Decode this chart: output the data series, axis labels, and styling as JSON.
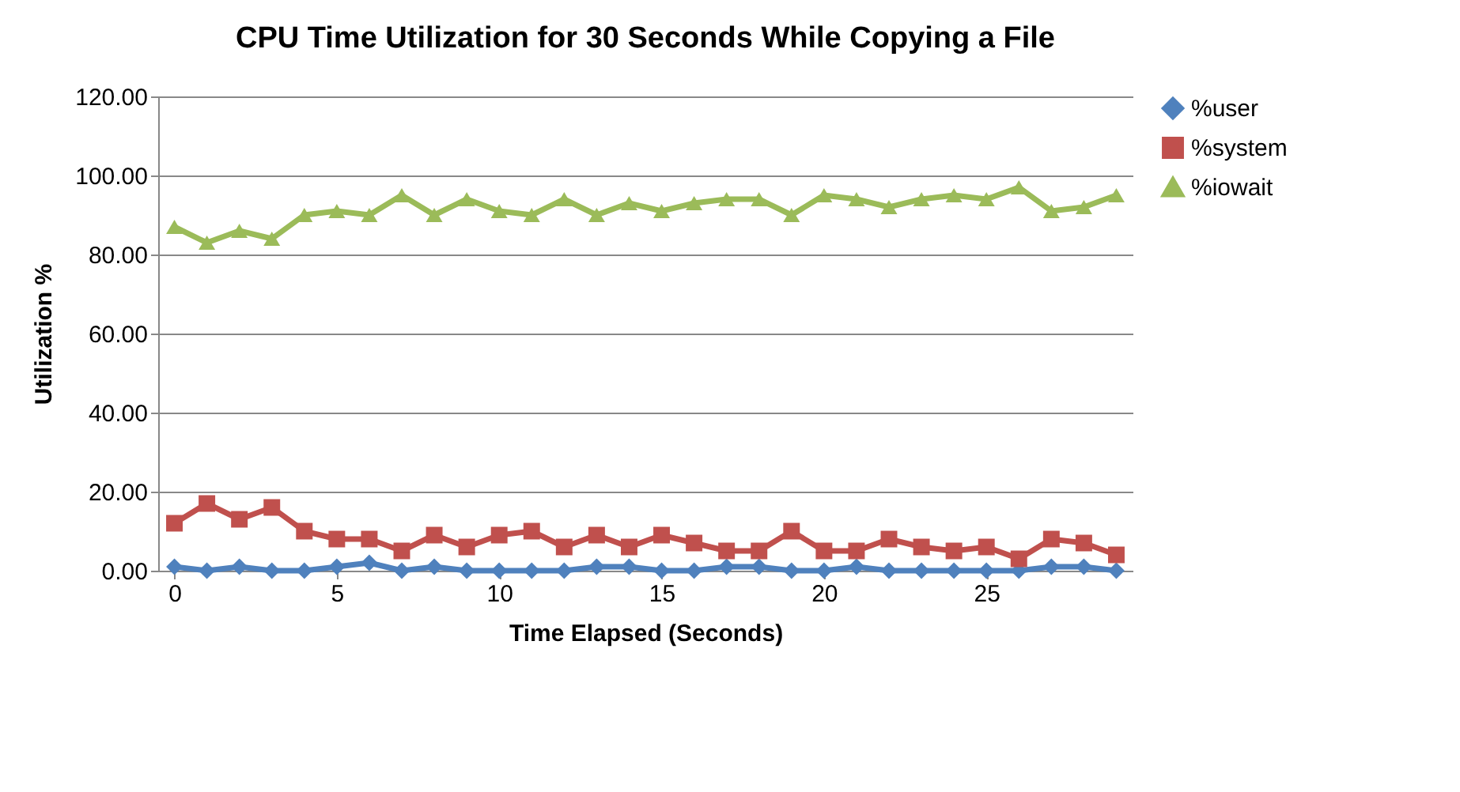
{
  "chart_data": {
    "type": "line",
    "title": "CPU Time Utilization for 30 Seconds While Copying a File",
    "xlabel": "Time Elapsed (Seconds)",
    "ylabel": "Utilization %",
    "x": [
      0,
      1,
      2,
      3,
      4,
      5,
      6,
      7,
      8,
      9,
      10,
      11,
      12,
      13,
      14,
      15,
      16,
      17,
      18,
      19,
      20,
      21,
      22,
      23,
      24,
      25,
      26,
      27,
      28,
      29
    ],
    "xlim": [
      -0.5,
      29.5
    ],
    "xticks": [
      0,
      5,
      10,
      15,
      20,
      25
    ],
    "ylim": [
      0,
      120
    ],
    "yticks": [
      {
        "value": 0,
        "label": "0.00"
      },
      {
        "value": 20,
        "label": "20.00"
      },
      {
        "value": 40,
        "label": "40.00"
      },
      {
        "value": 60,
        "label": "60.00"
      },
      {
        "value": 80,
        "label": "80.00"
      },
      {
        "value": 100,
        "label": "100.00"
      },
      {
        "value": 120,
        "label": "120.00"
      }
    ],
    "grid": "y",
    "legend": "right",
    "series": [
      {
        "name": "%user",
        "color": "#4f81bd",
        "marker": "diamond",
        "values": [
          1,
          0,
          1,
          0,
          0,
          1,
          2,
          0,
          1,
          0,
          0,
          0,
          0,
          1,
          1,
          0,
          0,
          1,
          1,
          0,
          0,
          1,
          0,
          0,
          0,
          0,
          0,
          1,
          1,
          0
        ]
      },
      {
        "name": "%system",
        "color": "#c0504d",
        "marker": "square",
        "values": [
          12,
          17,
          13,
          16,
          10,
          8,
          8,
          5,
          9,
          6,
          9,
          10,
          6,
          9,
          6,
          9,
          7,
          5,
          5,
          10,
          5,
          5,
          8,
          6,
          5,
          6,
          3,
          8,
          7,
          4
        ]
      },
      {
        "name": "%iowait",
        "color": "#9bbb59",
        "marker": "triangle",
        "values": [
          87,
          83,
          86,
          84,
          90,
          91,
          90,
          95,
          90,
          94,
          91,
          90,
          94,
          90,
          93,
          91,
          93,
          94,
          94,
          90,
          95,
          94,
          92,
          94,
          95,
          94,
          97,
          91,
          92,
          95
        ]
      }
    ]
  }
}
